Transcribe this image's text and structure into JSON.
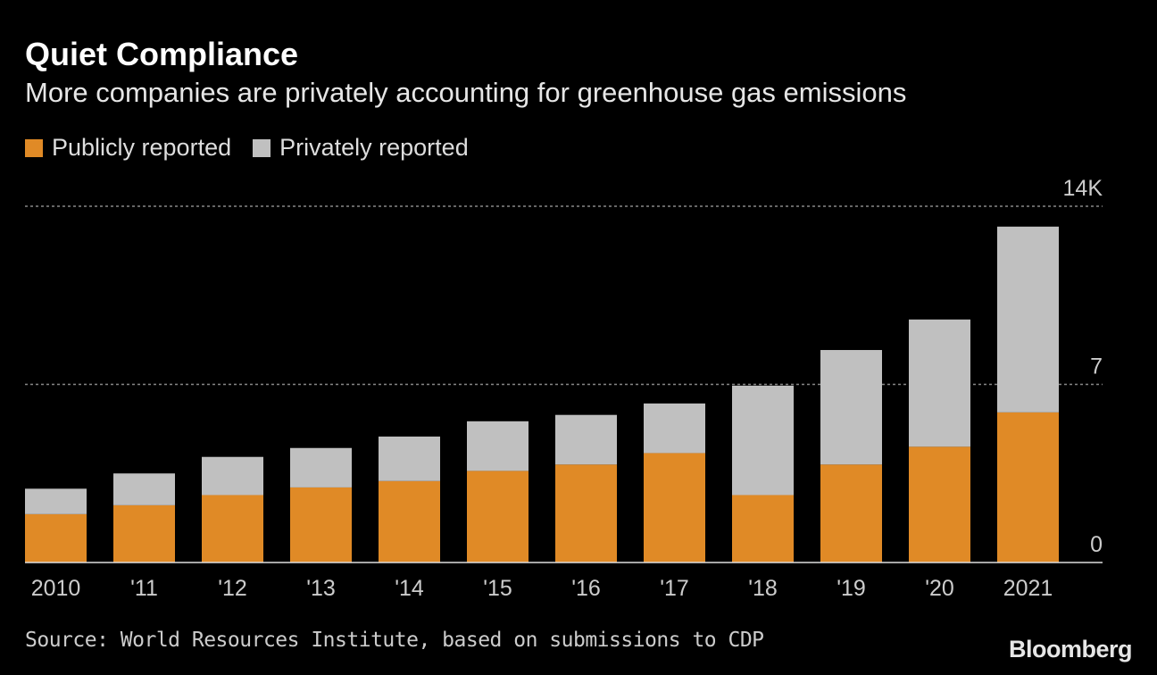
{
  "header": {
    "title": "Quiet Compliance",
    "subtitle": "More companies are privately accounting for greenhouse gas emissions"
  },
  "footer": {
    "source": "Source: World Resources Institute, based on submissions to CDP",
    "logo": "Bloomberg"
  },
  "chart_data": {
    "type": "bar",
    "stacked": true,
    "title": "Quiet Compliance",
    "subtitle": "More companies are privately accounting for greenhouse gas emissions",
    "xlabel": "",
    "ylabel": "",
    "categories": [
      "2010",
      "'11",
      "'12",
      "'13",
      "'14",
      "'15",
      "'16",
      "'17",
      "'18",
      "'19",
      "'20",
      "2021"
    ],
    "series": [
      {
        "name": "Publicly reported",
        "color": "#e08a26",
        "values": [
          1.9,
          2.25,
          2.65,
          2.95,
          3.2,
          3.6,
          3.85,
          4.3,
          2.65,
          3.85,
          4.55,
          5.9
        ]
      },
      {
        "name": "Privately reported",
        "color": "#c0c0c0",
        "values": [
          1.0,
          1.25,
          1.5,
          1.55,
          1.75,
          1.95,
          1.95,
          1.95,
          4.3,
          4.5,
          5.0,
          7.3
        ]
      }
    ],
    "units": "thousands",
    "ylim": [
      0,
      14
    ],
    "yticks": [
      {
        "value": 0,
        "label": "0"
      },
      {
        "value": 7,
        "label": "7"
      },
      {
        "value": 14,
        "label": "14K"
      }
    ],
    "grid": true,
    "legend_position": "top-left"
  }
}
